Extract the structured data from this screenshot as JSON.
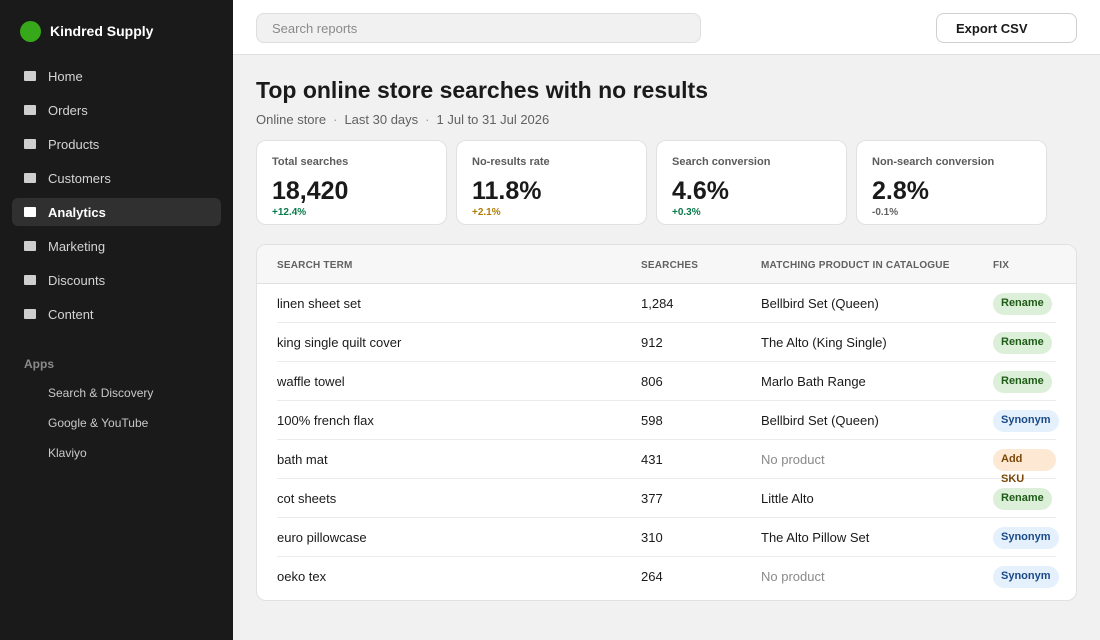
{
  "brand": {
    "name": "Kindred Supply"
  },
  "sidebar": {
    "items": [
      {
        "label": "Home",
        "active": false
      },
      {
        "label": "Orders",
        "active": false
      },
      {
        "label": "Products",
        "active": false
      },
      {
        "label": "Customers",
        "active": false
      },
      {
        "label": "Analytics",
        "active": true
      },
      {
        "label": "Marketing",
        "active": false
      },
      {
        "label": "Discounts",
        "active": false
      },
      {
        "label": "Content",
        "active": false
      }
    ],
    "apps_label": "Apps",
    "apps": [
      "Search & Discovery",
      "Google & YouTube",
      "Klaviyo"
    ]
  },
  "topbar": {
    "search_placeholder": "Search reports",
    "export_label": "Export CSV"
  },
  "page": {
    "title": "Top online store searches with no results",
    "subtitle": [
      "Online store",
      "Last 30 days",
      "1 Jul to 31 Jul 2026"
    ],
    "subtitle_separator": "·"
  },
  "kpis": [
    {
      "label": "Total searches",
      "value": "18,420",
      "delta": "+12.4%",
      "delta_color": "#0a7a4a"
    },
    {
      "label": "No-results rate",
      "value": "11.8%",
      "delta": "+2.1%",
      "delta_color": "#b07d05"
    },
    {
      "label": "Search conversion",
      "value": "4.6%",
      "delta": "+0.3%",
      "delta_color": "#0a7a4a"
    },
    {
      "label": "Non-search conversion",
      "value": "2.8%",
      "delta": "-0.1%",
      "delta_color": "#616161"
    }
  ],
  "table": {
    "headers": [
      "SEARCH TERM",
      "SEARCHES",
      "MATCHING PRODUCT IN CATALOGUE",
      "FIX"
    ],
    "rows": [
      {
        "term": "linen sheet set",
        "searches": "1,284",
        "product": "Bellbird Set (Queen)",
        "product_muted": false,
        "fix": "Rename",
        "fix_type": "rename"
      },
      {
        "term": "king single quilt cover",
        "searches": "912",
        "product": "The Alto (King Single)",
        "product_muted": false,
        "fix": "Rename",
        "fix_type": "rename"
      },
      {
        "term": "waffle towel",
        "searches": "806",
        "product": "Marlo Bath Range",
        "product_muted": false,
        "fix": "Rename",
        "fix_type": "rename"
      },
      {
        "term": "100% french flax",
        "searches": "598",
        "product": "Bellbird Set (Queen)",
        "product_muted": false,
        "fix": "Synonym",
        "fix_type": "synonym"
      },
      {
        "term": "bath mat",
        "searches": "431",
        "product": "No product",
        "product_muted": true,
        "fix": "Add SKU",
        "fix_type": "addsku"
      },
      {
        "term": "cot sheets",
        "searches": "377",
        "product": "Little Alto",
        "product_muted": false,
        "fix": "Rename",
        "fix_type": "rename"
      },
      {
        "term": "euro pillowcase",
        "searches": "310",
        "product": "The Alto Pillow Set",
        "product_muted": false,
        "fix": "Synonym",
        "fix_type": "synonym"
      },
      {
        "term": "oeko tex",
        "searches": "264",
        "product": "No product",
        "product_muted": true,
        "fix": "Synonym",
        "fix_type": "synonym"
      }
    ]
  },
  "colors": {
    "sidebar_bg": "#1a1a1a",
    "brand_logo": "#36a81a",
    "page_bg": "#f1f1f1"
  }
}
